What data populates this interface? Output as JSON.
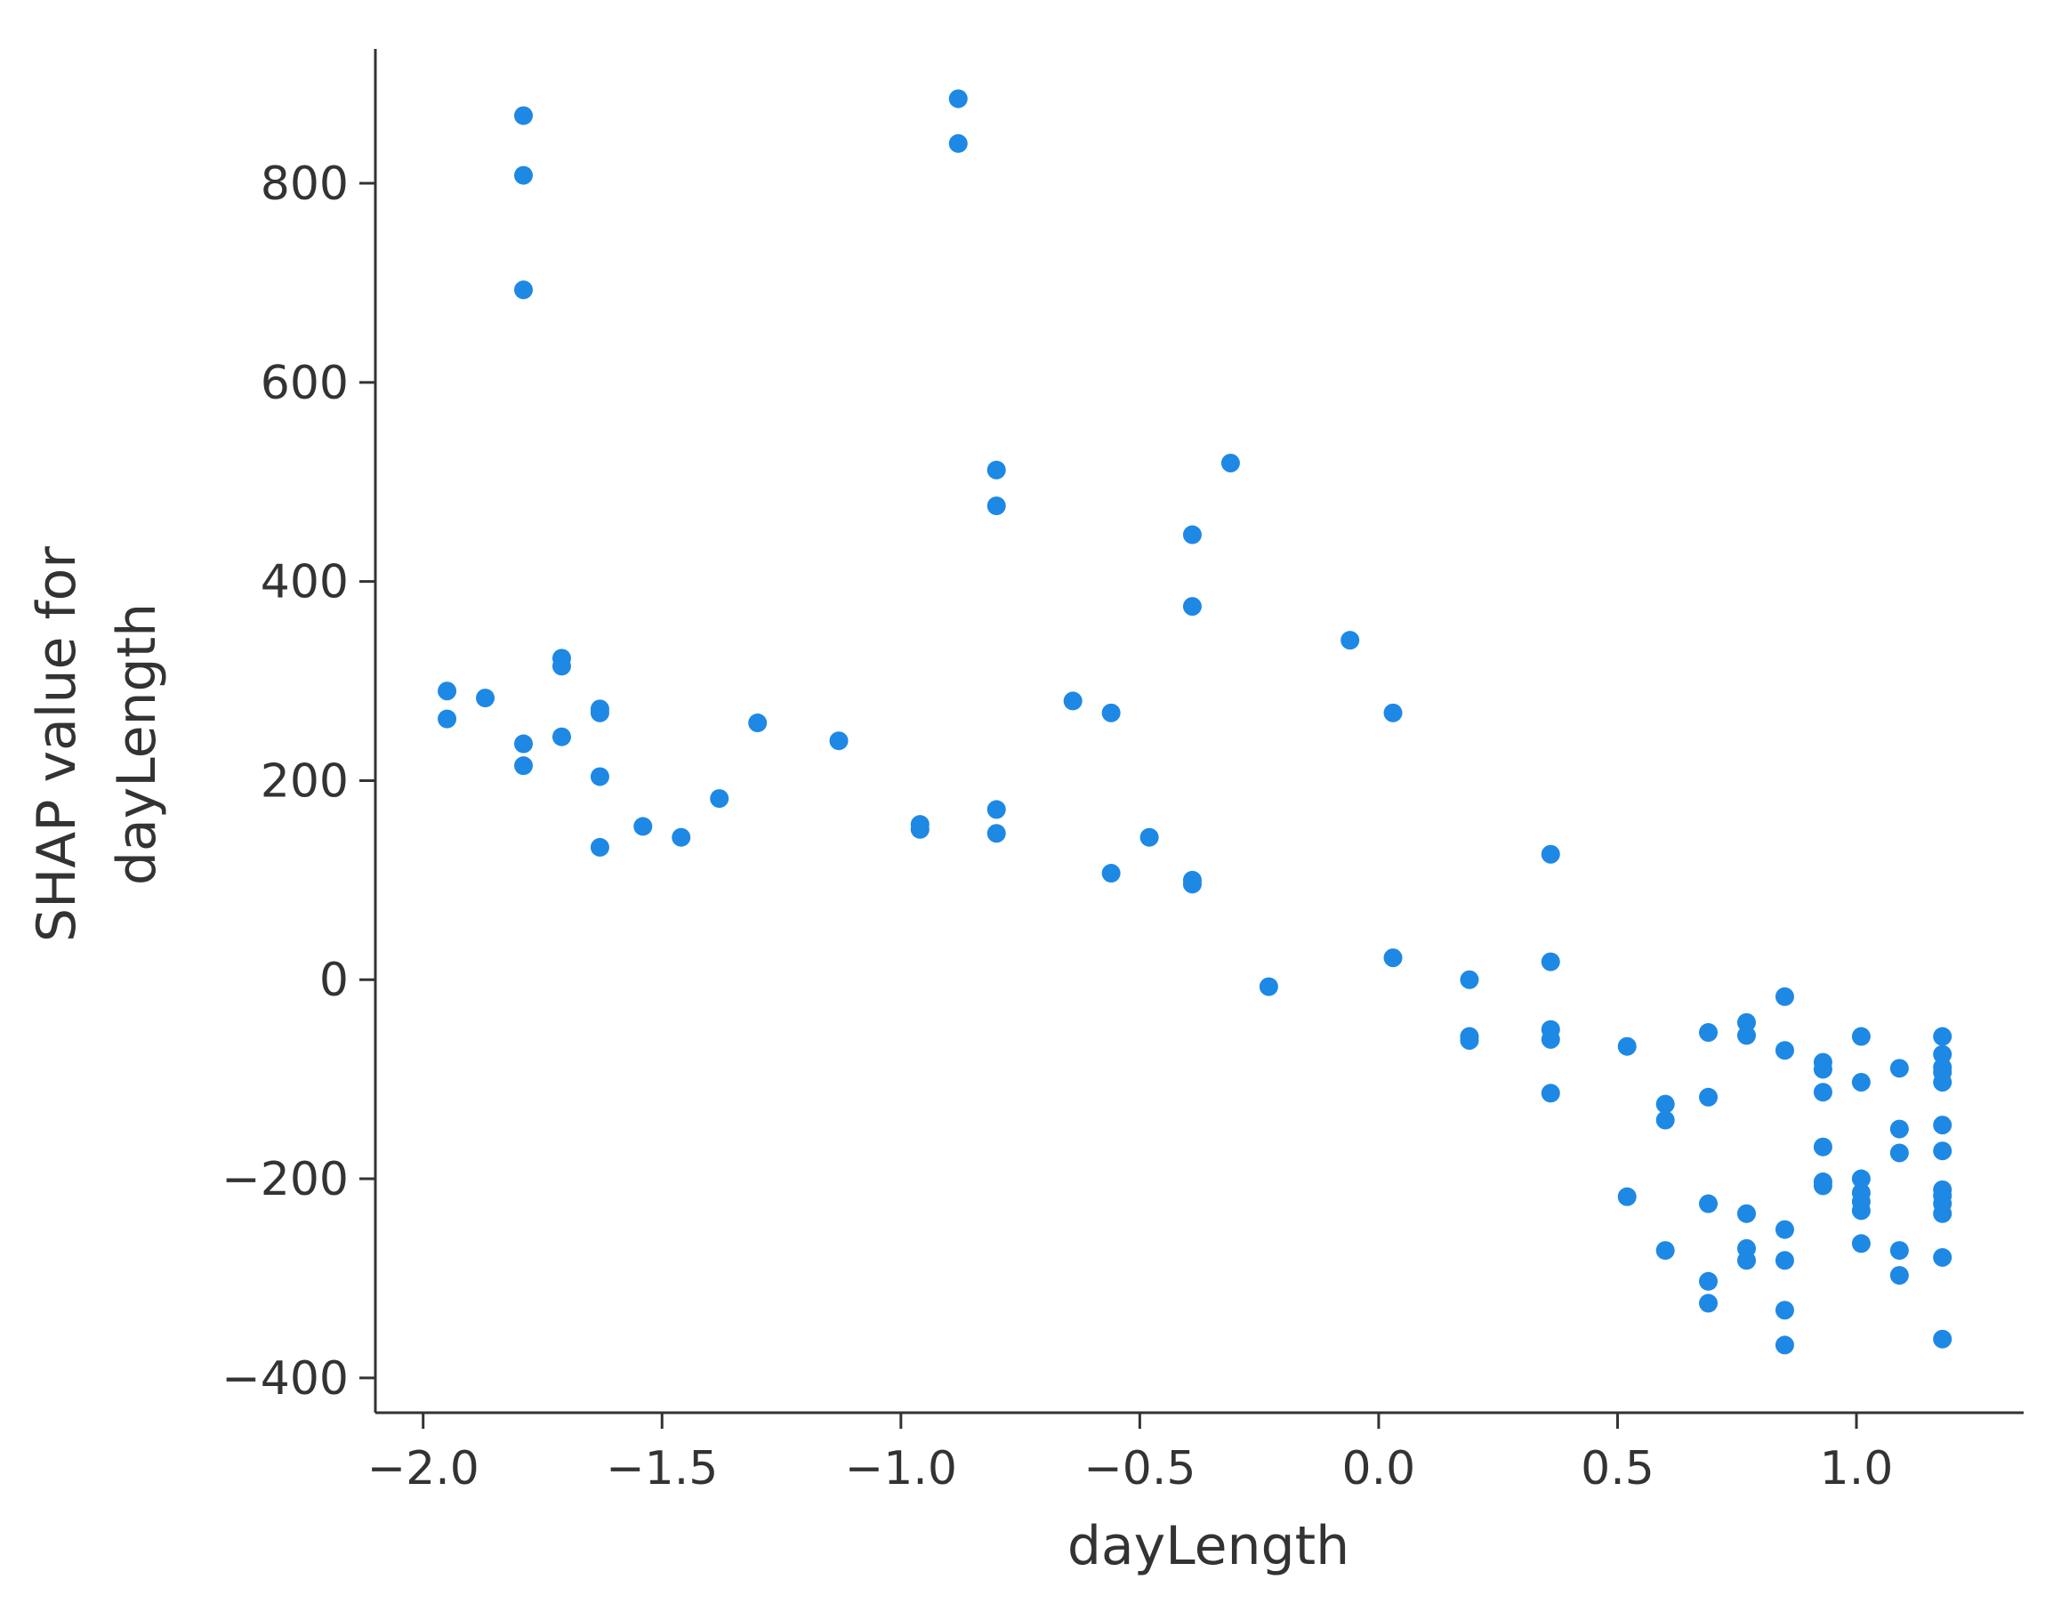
{
  "chart_data": {
    "type": "scatter",
    "title": "",
    "xlabel": "dayLength",
    "ylabel_lines": [
      "SHAP value for",
      "dayLength"
    ],
    "xlim": [
      -2.1,
      1.35
    ],
    "ylim": [
      -435,
      935
    ],
    "grid": false,
    "x_ticks": [
      -2.0,
      -1.5,
      -1.0,
      -0.5,
      0.0,
      0.5,
      1.0
    ],
    "x_tick_labels": [
      "−2.0",
      "−1.5",
      "−1.0",
      "−0.5",
      "0.0",
      "0.5",
      "1.0"
    ],
    "y_ticks": [
      -400,
      -200,
      0,
      200,
      400,
      600,
      800
    ],
    "y_tick_labels": [
      "−400",
      "−200",
      "0",
      "200",
      "400",
      "600",
      "800"
    ],
    "marker_color": "#1e88e5",
    "points": [
      [
        -1.79,
        868
      ],
      [
        -1.79,
        808
      ],
      [
        -1.79,
        693
      ],
      [
        -0.88,
        885
      ],
      [
        -0.88,
        840
      ],
      [
        -0.8,
        512
      ],
      [
        -0.8,
        476
      ],
      [
        -0.31,
        519
      ],
      [
        -0.39,
        447
      ],
      [
        -0.39,
        375
      ],
      [
        -0.06,
        341
      ],
      [
        0.03,
        268
      ],
      [
        -1.95,
        290
      ],
      [
        -1.95,
        262
      ],
      [
        -1.87,
        283
      ],
      [
        -1.79,
        237
      ],
      [
        -1.79,
        215
      ],
      [
        -1.71,
        323
      ],
      [
        -1.71,
        315
      ],
      [
        -1.71,
        244
      ],
      [
        -1.63,
        272
      ],
      [
        -1.63,
        268
      ],
      [
        -1.63,
        204
      ],
      [
        -1.63,
        133
      ],
      [
        -1.54,
        154
      ],
      [
        -1.46,
        143
      ],
      [
        -1.38,
        182
      ],
      [
        -1.3,
        258
      ],
      [
        -1.13,
        240
      ],
      [
        -0.96,
        156
      ],
      [
        -0.96,
        151
      ],
      [
        -0.8,
        171
      ],
      [
        -0.8,
        147
      ],
      [
        -0.64,
        280
      ],
      [
        -0.56,
        268
      ],
      [
        -0.56,
        107
      ],
      [
        -0.48,
        143
      ],
      [
        -0.39,
        100
      ],
      [
        -0.39,
        96
      ],
      [
        -0.23,
        -7
      ],
      [
        0.03,
        22
      ],
      [
        0.19,
        0
      ],
      [
        0.19,
        -57
      ],
      [
        0.19,
        -61
      ],
      [
        0.36,
        126
      ],
      [
        0.36,
        18
      ],
      [
        0.36,
        -50
      ],
      [
        0.36,
        -60
      ],
      [
        0.36,
        -114
      ],
      [
        0.52,
        -67
      ],
      [
        0.52,
        -218
      ],
      [
        0.6,
        -125
      ],
      [
        0.6,
        -141
      ],
      [
        0.6,
        -272
      ],
      [
        0.69,
        -53
      ],
      [
        0.69,
        -118
      ],
      [
        0.69,
        -225
      ],
      [
        0.69,
        -303
      ],
      [
        0.69,
        -325
      ],
      [
        0.77,
        -43
      ],
      [
        0.77,
        -56
      ],
      [
        0.77,
        -235
      ],
      [
        0.77,
        -270
      ],
      [
        0.77,
        -282
      ],
      [
        0.85,
        -17
      ],
      [
        0.85,
        -71
      ],
      [
        0.85,
        -251
      ],
      [
        0.85,
        -282
      ],
      [
        0.85,
        -332
      ],
      [
        0.85,
        -367
      ],
      [
        0.93,
        -83
      ],
      [
        0.93,
        -90
      ],
      [
        0.93,
        -113
      ],
      [
        0.93,
        -168
      ],
      [
        0.93,
        -203
      ],
      [
        0.93,
        -207
      ],
      [
        1.01,
        -57
      ],
      [
        1.01,
        -103
      ],
      [
        1.01,
        -200
      ],
      [
        1.01,
        -214
      ],
      [
        1.01,
        -223
      ],
      [
        1.01,
        -232
      ],
      [
        1.01,
        -265
      ],
      [
        1.09,
        -89
      ],
      [
        1.09,
        -150
      ],
      [
        1.09,
        -174
      ],
      [
        1.09,
        -272
      ],
      [
        1.09,
        -297
      ],
      [
        1.18,
        -57
      ],
      [
        1.18,
        -75
      ],
      [
        1.18,
        -88
      ],
      [
        1.18,
        -93
      ],
      [
        1.18,
        -103
      ],
      [
        1.18,
        -146
      ],
      [
        1.18,
        -172
      ],
      [
        1.18,
        -211
      ],
      [
        1.18,
        -217
      ],
      [
        1.18,
        -225
      ],
      [
        1.18,
        -235
      ],
      [
        1.18,
        -279
      ],
      [
        1.18,
        -361
      ]
    ]
  }
}
